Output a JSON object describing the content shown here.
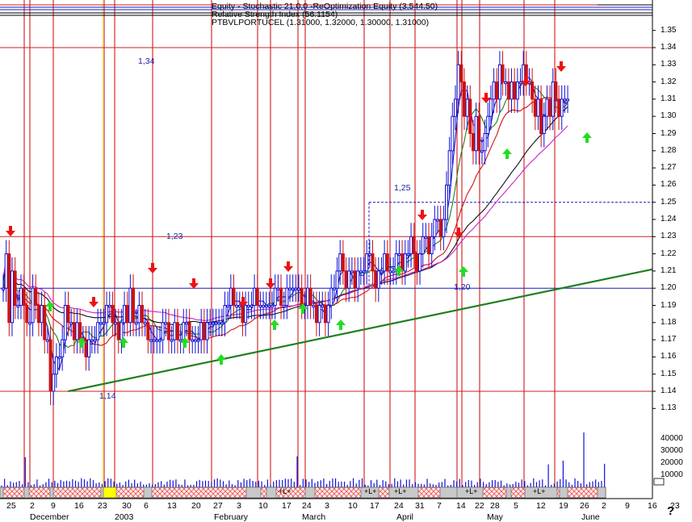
{
  "header": {
    "line1": "Equity - Stochastic 21,0,0 -ReOptimization Equity (3,544.50)",
    "line2": "Relative Strength Index (56.1154)",
    "line3": "PTBVLPORTUCEL (1.31000, 1.32000, 1.30000, 1.31000)"
  },
  "colors": {
    "up_bar": "#1010d8",
    "down_bar": "#d01010",
    "trendline": "#208020",
    "ma_fast": "#1818c0",
    "ma_mid": "#208020",
    "ma_slow": "#d01010",
    "ma_black": "#101010",
    "ma_magenta": "#cc22cc",
    "buy_arrow": "#22dd22",
    "sell_arrow": "#ee1111",
    "vertical_red": "#cc0000",
    "vertical_yellow": "#eeee44"
  },
  "annotations": {
    "level_134": "1,34",
    "level_123": "1,23",
    "level_125": "1,25",
    "level_120": "1,20",
    "level_114": "1,14",
    "lplus": "+L+",
    "question_mark": "?"
  },
  "chart_data": {
    "type": "candlestick",
    "symbol": "PTBVLPORTUCEL",
    "last_ohlc": {
      "open": 1.31,
      "high": 1.32,
      "low": 1.3,
      "close": 1.31
    },
    "price_axis": {
      "ticks": [
        "1.35",
        "1.34",
        "1.33",
        "1.32",
        "1.31",
        "1.30",
        "1.29",
        "1.28",
        "1.27",
        "1.26",
        "1.25",
        "1.24",
        "1.23",
        "1.22",
        "1.21",
        "1.20",
        "1.19",
        "1.18",
        "1.17",
        "1.16",
        "1.15",
        "1.14",
        "1.13"
      ],
      "ylim": [
        1.125,
        1.355
      ]
    },
    "volume_axis": {
      "ticks": [
        "40000",
        "30000",
        "20000",
        "10000",
        "0"
      ],
      "ylim": [
        0,
        45000
      ]
    },
    "horizontal_levels": [
      1.34,
      1.25,
      1.23,
      1.2,
      1.14
    ],
    "trendline": {
      "from": {
        "x": 22,
        "y": 1.14
      },
      "to": {
        "x": 218,
        "y": 1.211
      }
    },
    "x_day_labels": [
      "25",
      "2",
      "9",
      "16",
      "23",
      "30",
      "6",
      "13",
      "20",
      "27",
      "3",
      "10",
      "17",
      "24",
      "3",
      "10",
      "17",
      "24",
      "31",
      "7",
      "14",
      "22",
      "28",
      "5",
      "12",
      "19",
      "26",
      "2",
      "9",
      "16",
      "23"
    ],
    "x_month_labels": [
      "December",
      "2003",
      "February",
      "March",
      "April",
      "May",
      "June"
    ],
    "closes": [
      1.2,
      1.22,
      1.18,
      1.21,
      1.19,
      1.19,
      1.2,
      1.19,
      1.18,
      1.18,
      1.2,
      1.19,
      1.18,
      1.19,
      1.17,
      1.17,
      1.14,
      1.15,
      1.16,
      1.16,
      1.17,
      1.19,
      1.18,
      1.18,
      1.17,
      1.18,
      1.17,
      1.17,
      1.16,
      1.17,
      1.17,
      1.17,
      1.18,
      1.18,
      1.18,
      1.19,
      1.19,
      1.18,
      1.18,
      1.17,
      1.18,
      1.19,
      1.18,
      1.2,
      1.18,
      1.18,
      1.19,
      1.18,
      1.18,
      1.17,
      1.17,
      1.17,
      1.17,
      1.17,
      1.18,
      1.18,
      1.17,
      1.17,
      1.18,
      1.17,
      1.17,
      1.18,
      1.18,
      1.17,
      1.17,
      1.17,
      1.17,
      1.18,
      1.17,
      1.18,
      1.18,
      1.18,
      1.18,
      1.18,
      1.18,
      1.19,
      1.19,
      1.2,
      1.19,
      1.19,
      1.19,
      1.18,
      1.19,
      1.19,
      1.19,
      1.2,
      1.19,
      1.19,
      1.19,
      1.19,
      1.19,
      1.19,
      1.2,
      1.2,
      1.19,
      1.19,
      1.2,
      1.2,
      1.2,
      1.2,
      1.2,
      1.19,
      1.19,
      1.2,
      1.19,
      1.19,
      1.18,
      1.19,
      1.19,
      1.18,
      1.19,
      1.2,
      1.2,
      1.21,
      1.22,
      1.21,
      1.2,
      1.21,
      1.21,
      1.2,
      1.21,
      1.21,
      1.21,
      1.22,
      1.22,
      1.21,
      1.2,
      1.21,
      1.21,
      1.22,
      1.21,
      1.21,
      1.21,
      1.22,
      1.22,
      1.21,
      1.22,
      1.22,
      1.23,
      1.22,
      1.21,
      1.22,
      1.23,
      1.23,
      1.22,
      1.23,
      1.24,
      1.24,
      1.23,
      1.24,
      1.26,
      1.28,
      1.3,
      1.31,
      1.33,
      1.32,
      1.3,
      1.31,
      1.29,
      1.28,
      1.3,
      1.28,
      1.28,
      1.29,
      1.3,
      1.31,
      1.32,
      1.31,
      1.33,
      1.32,
      1.32,
      1.31,
      1.32,
      1.31,
      1.32,
      1.32,
      1.33,
      1.32,
      1.32,
      1.31,
      1.3,
      1.31,
      1.29,
      1.3,
      1.31,
      1.3,
      1.32,
      1.31,
      1.3,
      1.31,
      1.31,
      1.31
    ]
  }
}
